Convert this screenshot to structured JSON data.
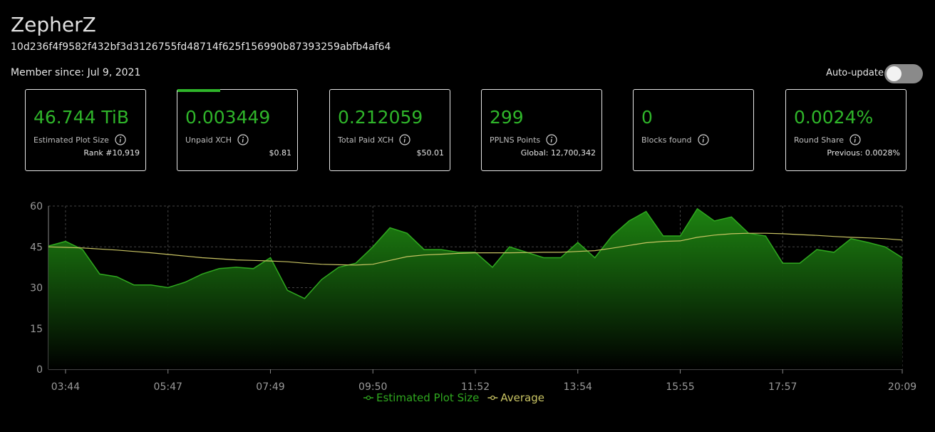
{
  "header": {
    "name": "ZepherZ",
    "hash": "10d236f4f9582f432bf3d3126755fd48714f625f156990b87393259abfb4af64",
    "member_since": "Member since: Jul 9, 2021",
    "auto_update": "Auto-update"
  },
  "cards": [
    {
      "value": "46.744 TiB",
      "label": "Estimated Plot Size",
      "sub": "Rank #10,919"
    },
    {
      "value": "0.003449",
      "label": "Unpaid XCH",
      "sub": "$0.81"
    },
    {
      "value": "0.212059",
      "label": "Total Paid XCH",
      "sub": "$50.01"
    },
    {
      "value": "299",
      "label": "PPLNS Points",
      "sub": "Global: 12,700,342"
    },
    {
      "value": "0",
      "label": "Blocks found"
    },
    {
      "value": "0.0024%",
      "label": "Round Share",
      "sub": "Previous: 0.0028%"
    }
  ],
  "chart_data": {
    "type": "area",
    "categories": [
      null,
      "03:44",
      null,
      null,
      null,
      null,
      null,
      "05:47",
      null,
      null,
      null,
      null,
      null,
      "07:49",
      null,
      null,
      null,
      null,
      null,
      "09:50",
      null,
      null,
      null,
      null,
      null,
      "11:52",
      null,
      null,
      null,
      null,
      null,
      "13:54",
      null,
      null,
      null,
      null,
      null,
      "15:55",
      null,
      null,
      null,
      null,
      null,
      "17:57",
      null,
      null,
      null,
      null,
      null,
      null,
      "20:09"
    ],
    "series": [
      {
        "name": "Estimated Plot Size",
        "color": "#2fa81f",
        "values": [
          45.3,
          47,
          44,
          35,
          34,
          31,
          31,
          30,
          32,
          35,
          37,
          37.5,
          37,
          41,
          29,
          26,
          33,
          37.5,
          39,
          45,
          52,
          50,
          44,
          44,
          43,
          43,
          37.5,
          45,
          43,
          41,
          41,
          46.6,
          41,
          49,
          54.5,
          58,
          49,
          49,
          59,
          54.5,
          56,
          50,
          49,
          39,
          39,
          44,
          43,
          48,
          46.6,
          45,
          41
        ]
      },
      {
        "name": "Average",
        "color": "#c9c463",
        "values": [
          45,
          44.8,
          44.6,
          44.2,
          43.8,
          43.3,
          42.8,
          42.2,
          41.6,
          41,
          40.6,
          40.2,
          40,
          39.8,
          39.5,
          39,
          38.6,
          38.4,
          38.3,
          38.6,
          40,
          41.4,
          42,
          42.3,
          42.6,
          42.8,
          42.8,
          42.8,
          42.9,
          43,
          43,
          43.3,
          43.6,
          44.5,
          45.5,
          46.5,
          47,
          47.2,
          48.5,
          49.3,
          49.8,
          50,
          50,
          49.8,
          49.5,
          49.2,
          48.8,
          48.5,
          48.3,
          48,
          47.5
        ]
      }
    ],
    "ylim": [
      0,
      60
    ],
    "yticks": [
      0,
      15,
      30,
      45,
      60
    ],
    "grid": true,
    "legend": "bottom"
  }
}
